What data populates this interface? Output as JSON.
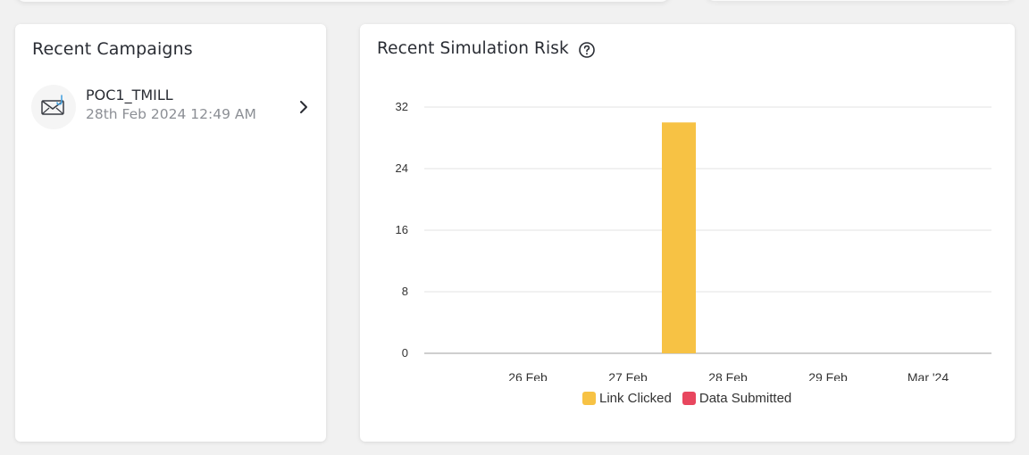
{
  "campaigns_card": {
    "title": "Recent Campaigns",
    "items": [
      {
        "name": "POC1_TMILL",
        "date": "28th Feb 2024 12:49 AM",
        "icon": "mail-hook-icon"
      }
    ]
  },
  "risk_card": {
    "title": "Recent Simulation Risk",
    "help_icon": "help-circle-icon"
  },
  "colors": {
    "link_clicked": "#f7c244",
    "data_submitted": "#e8465e"
  },
  "chart_data": {
    "type": "bar",
    "title": "Recent Simulation Risk",
    "categories": [
      "26 Feb",
      "27 Feb",
      "28 Feb",
      "29 Feb",
      "Mar '24"
    ],
    "series": [
      {
        "name": "Link Clicked",
        "values": [
          0,
          0,
          30,
          0,
          0
        ]
      },
      {
        "name": "Data Submitted",
        "values": [
          0,
          0,
          0,
          0,
          0
        ]
      }
    ],
    "yticks": [
      0,
      8,
      16,
      24,
      32
    ],
    "ylim": [
      0,
      32
    ],
    "xlabel": "",
    "ylabel": "",
    "grid": true,
    "legend": "bottom-center"
  }
}
